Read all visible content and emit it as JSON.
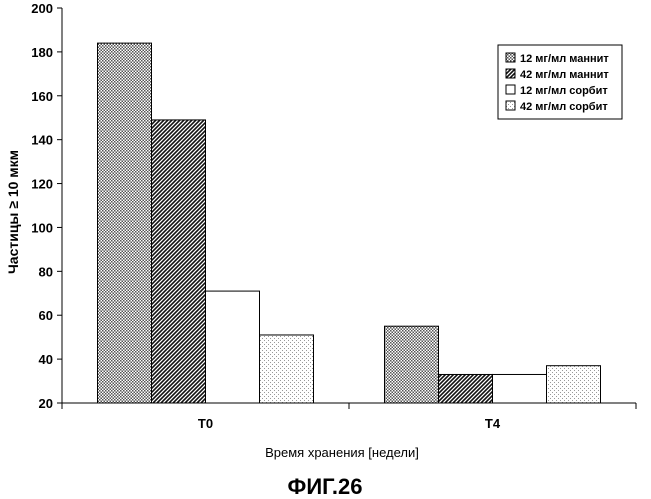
{
  "chart_data": {
    "type": "bar",
    "categories": [
      "T0",
      "T4"
    ],
    "series": [
      {
        "name": "12 мг/мл маннит",
        "values": [
          184,
          55
        ],
        "pattern": "dots"
      },
      {
        "name": "42 мг/мл маннит",
        "values": [
          149,
          33
        ],
        "pattern": "hatch"
      },
      {
        "name": "12 мг/мл сорбит",
        "values": [
          71,
          33
        ],
        "pattern": "solid-white"
      },
      {
        "name": "42 мг/мл сорбит",
        "values": [
          51,
          37
        ],
        "pattern": "fine-dots"
      }
    ],
    "xlabel": "Время хранения [недели]",
    "ylabel": "Частицы ≥ 10 мкм",
    "ylim": [
      20,
      200
    ],
    "yticks": [
      20,
      40,
      60,
      80,
      100,
      120,
      140,
      160,
      180,
      200
    ],
    "legend_position": "top-right",
    "grid": false
  },
  "figure_label": "ФИГ.26"
}
